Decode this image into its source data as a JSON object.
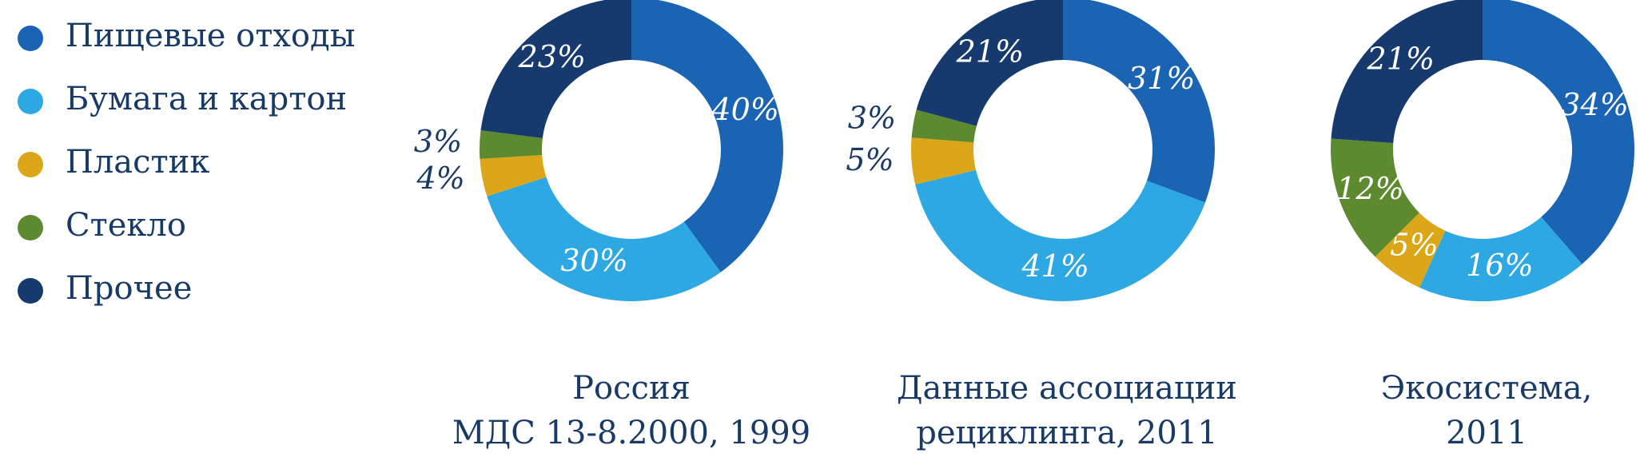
{
  "legend": [
    {
      "label": "Пищевые отходы",
      "color": "#1b63b3"
    },
    {
      "label": "Бумага и картон",
      "color": "#2ea8e2"
    },
    {
      "label": "Пластик",
      "color": "#dba618"
    },
    {
      "label": "Стекло",
      "color": "#5d8a2e"
    },
    {
      "label": "Прочее",
      "color": "#173a6e"
    }
  ],
  "captions": [
    {
      "line1": "Россия",
      "line2": "МДС 13-8.2000, 1999"
    },
    {
      "line1": "Данные ассоциации",
      "line2": "рециклинга, 2011"
    },
    {
      "line1": "Экосистема,",
      "line2": "2011"
    }
  ],
  "chart_data": [
    {
      "type": "pie",
      "title": "Россия МДС 13-8.2000, 1999",
      "categories": [
        "Пищевые отходы",
        "Бумага и картон",
        "Пластик",
        "Стекло",
        "Прочее"
      ],
      "values": [
        40,
        30,
        4,
        3,
        23
      ],
      "labels": [
        "40%",
        "30%",
        "4%",
        "3%",
        "23%"
      ]
    },
    {
      "type": "pie",
      "title": "Данные ассоциации рециклинга, 2011",
      "categories": [
        "Пищевые отходы",
        "Бумага и картон",
        "Пластик",
        "Стекло",
        "Прочее"
      ],
      "values": [
        31,
        41,
        5,
        3,
        21
      ],
      "labels": [
        "31%",
        "41%",
        "5%",
        "3%",
        "21%"
      ]
    },
    {
      "type": "pie",
      "title": "Экосистема, 2011",
      "categories": [
        "Пищевые отходы",
        "Бумага и картон",
        "Пластик",
        "Стекло",
        "Прочее"
      ],
      "values": [
        34,
        16,
        5,
        12,
        21
      ],
      "labels": [
        "34%",
        "16%",
        "5%",
        "12%",
        "21%"
      ]
    }
  ]
}
